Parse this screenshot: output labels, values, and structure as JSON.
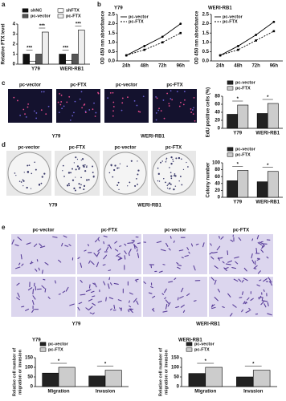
{
  "panels": {
    "labels": [
      "a",
      "b",
      "c",
      "d",
      "e"
    ],
    "c": {
      "images": [
        "pc-vector",
        "pc-FTX",
        "pc-vector",
        "pc-FTX"
      ],
      "groups": [
        "Y79",
        "WERI-RB1"
      ]
    },
    "d": {
      "images": [
        "pc-vector",
        "pc-FTX",
        "pc-vector",
        "pc-FTX"
      ],
      "groups": [
        "Y79",
        "WERI-RB1"
      ]
    },
    "e": {
      "images": [
        "pc-vector",
        "pc-FTX",
        "pc-vector",
        "pc-FTX"
      ],
      "groups": [
        "Y79",
        "WERI-RB1"
      ]
    }
  },
  "chart_data": [
    {
      "type": "bar",
      "ylabel": "Relative FTX level",
      "categories": [
        "Y79",
        "WERI-RB1"
      ],
      "series": [
        {
          "name": "shNC",
          "color": "#111111",
          "values": [
            1,
            1
          ]
        },
        {
          "name": "shFTX",
          "color": "#ffffff",
          "values": [
            0.3,
            0.35
          ]
        },
        {
          "name": "pc-vector",
          "color": "#555555",
          "values": [
            1,
            1
          ]
        },
        {
          "name": "pc-FTX",
          "color": "#eeeeee",
          "values": [
            3.2,
            3.4
          ]
        }
      ],
      "ylim": [
        0,
        4
      ],
      "yticks": [
        0,
        1,
        2,
        3,
        4
      ],
      "legend": "top",
      "annotations": [
        "***",
        "***",
        "***",
        "***"
      ]
    },
    {
      "type": "line",
      "title": "Y79",
      "ylabel": "OD 450 nm absorbance",
      "categories": [
        "24h",
        "48h",
        "72h",
        "96h"
      ],
      "series": [
        {
          "name": "pc-vector",
          "color": "#000000",
          "style": "solid",
          "values": [
            0.3,
            0.8,
            1.3,
            2.0
          ]
        },
        {
          "name": "pc-FTX",
          "color": "#000000",
          "style": "dashed",
          "values": [
            0.3,
            0.6,
            1.0,
            1.5
          ]
        }
      ],
      "ylim": [
        0,
        2.5
      ],
      "yticks": [
        {
          "value": 0,
          "label": "0.0"
        },
        {
          "value": 0.5,
          "label": "0.5"
        },
        {
          "value": 1,
          "label": "1.0"
        },
        {
          "value": 1.5,
          "label": "1.5"
        },
        {
          "value": 2,
          "label": "2.0"
        },
        {
          "value": 2.5,
          "label": "2.5"
        }
      ],
      "legend": "upper left"
    },
    {
      "type": "line",
      "title": "WERI-RB1",
      "ylabel": "OD 450 nm absorbance",
      "categories": [
        "24h",
        "48h",
        "72h",
        "96h"
      ],
      "series": [
        {
          "name": "pc-vector",
          "color": "#000000",
          "style": "solid",
          "values": [
            0.3,
            0.8,
            1.4,
            2.1
          ]
        },
        {
          "name": "pc-FTX",
          "color": "#000000",
          "style": "dashed",
          "values": [
            0.3,
            0.6,
            1.1,
            1.6
          ]
        }
      ],
      "ylim": [
        0,
        2.5
      ],
      "yticks": [
        {
          "value": 0,
          "label": "0.0"
        },
        {
          "value": 0.5,
          "label": "0.5"
        },
        {
          "value": 1,
          "label": "1.0"
        },
        {
          "value": 1.5,
          "label": "1.5"
        },
        {
          "value": 2,
          "label": "2.0"
        },
        {
          "value": 2.5,
          "label": "2.5"
        }
      ],
      "legend": "upper left"
    },
    {
      "type": "bar",
      "ylabel": "EdU positive cells (%)",
      "categories": [
        "Y79",
        "WERI-RB1"
      ],
      "series": [
        {
          "name": "pc-vector",
          "color": "#222222",
          "values": [
            35,
            37
          ]
        },
        {
          "name": "pc-FTX",
          "color": "#cccccc",
          "values": [
            58,
            62
          ]
        }
      ],
      "ylim": [
        0,
        80
      ],
      "yticks": [
        0,
        20,
        40,
        60,
        80
      ],
      "legend": "top",
      "annotations": [
        "*",
        "*"
      ]
    },
    {
      "type": "bar",
      "ylabel": "Colony number",
      "categories": [
        "Y79",
        "WERI-RB1"
      ],
      "series": [
        {
          "name": "pc-vector",
          "color": "#222222",
          "values": [
            48,
            45
          ]
        },
        {
          "name": "pc-FTX",
          "color": "#cccccc",
          "values": [
            78,
            75
          ]
        }
      ],
      "ylim": [
        0,
        100
      ],
      "yticks": [
        0,
        20,
        40,
        60,
        80,
        100
      ],
      "legend": "top",
      "annotations": [
        "*",
        "*"
      ]
    },
    {
      "type": "bar",
      "title": "Y79",
      "ylabel": [
        "Relative cell number of",
        "migration or invasion"
      ],
      "categories": [
        "Migration",
        "Invasion"
      ],
      "series": [
        {
          "name": "pc-vector",
          "color": "#222222",
          "values": [
            70,
            55
          ]
        },
        {
          "name": "pc-FTX",
          "color": "#cccccc",
          "values": [
            100,
            85
          ]
        }
      ],
      "ylim": [
        0,
        150
      ],
      "yticks": [
        0,
        50,
        100,
        150
      ],
      "legend": "top",
      "annotations": [
        "*",
        "*"
      ]
    },
    {
      "type": "bar",
      "title": "WERI-RB1",
      "ylabel": [
        "Relative cell number of",
        "migration or invasion"
      ],
      "categories": [
        "Migration",
        "Invasion"
      ],
      "series": [
        {
          "name": "pc-vector",
          "color": "#222222",
          "values": [
            68,
            50
          ]
        },
        {
          "name": "pc-FTX",
          "color": "#cccccc",
          "values": [
            100,
            85
          ]
        }
      ],
      "ylim": [
        0,
        150
      ],
      "yticks": [
        0,
        50,
        100,
        150
      ],
      "legend": "top",
      "annotations": [
        "*",
        "*"
      ]
    }
  ]
}
